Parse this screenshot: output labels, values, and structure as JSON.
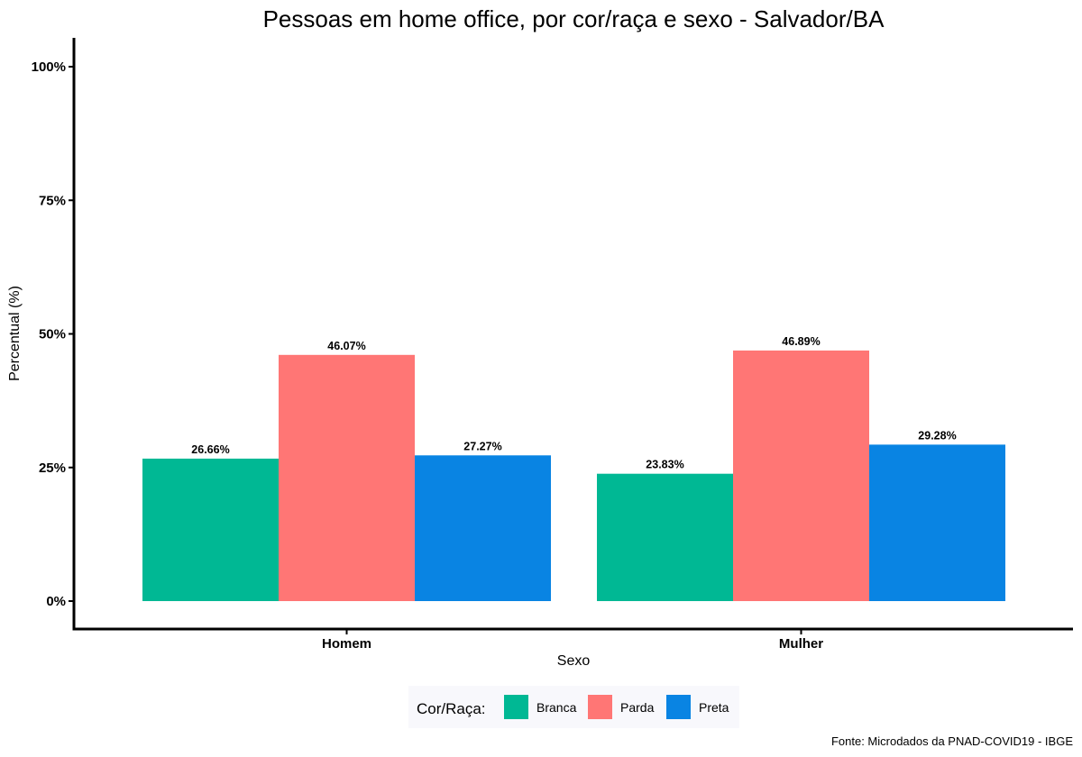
{
  "chart_data": {
    "type": "bar",
    "title": "Pessoas em home office, por cor/raça e sexo - Salvador/BA",
    "xlabel": "Sexo",
    "ylabel": "Percentual (%)",
    "ylim": [
      0,
      100
    ],
    "yticks": [
      0,
      25,
      50,
      75,
      100
    ],
    "ytick_labels": [
      "0%",
      "25%",
      "50%",
      "75%",
      "100%"
    ],
    "categories": [
      "Homem",
      "Mulher"
    ],
    "series": [
      {
        "name": "Branca",
        "color": "#00b894",
        "values": [
          26.66,
          23.83
        ],
        "labels": [
          "26.66%",
          "23.83%"
        ]
      },
      {
        "name": "Parda",
        "color": "#ff7675",
        "values": [
          46.07,
          46.89
        ],
        "labels": [
          "46.07%",
          "46.89%"
        ]
      },
      {
        "name": "Preta",
        "color": "#0984e3",
        "values": [
          27.27,
          29.28
        ],
        "labels": [
          "27.27%",
          "29.28%"
        ]
      }
    ],
    "legend": {
      "title": "Cor/Raça:",
      "position": "bottom"
    },
    "grid": false,
    "source": "Fonte: Microdados da PNAD-COVID19 - IBGE"
  }
}
